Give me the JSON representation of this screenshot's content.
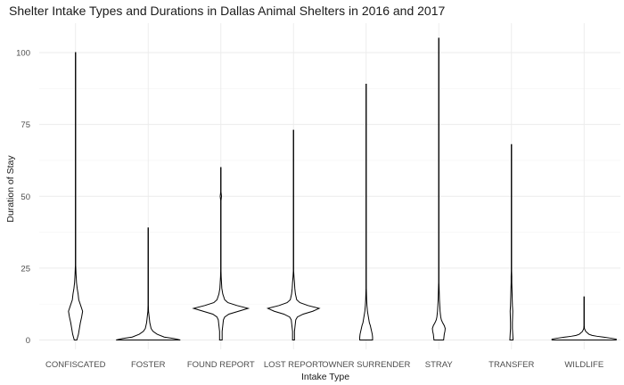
{
  "chart_data": {
    "type": "violin",
    "title": "Shelter Intake Types and Durations in Dallas Animal Shelters in 2016 and 2017",
    "xlabel": "Intake Type",
    "ylabel": "Duration of Stay",
    "ylim": [
      -4,
      110
    ],
    "yticks": [
      0,
      25,
      50,
      75,
      100
    ],
    "grid": true,
    "colors": {
      "outline": "#000000",
      "fill": "#ffffff",
      "grid": "#ebebeb"
    },
    "categories": [
      "CONFISCATED",
      "FOSTER",
      "FOUND REPORT",
      "LOST REPORT",
      "OWNER SURRENDER",
      "STRAY",
      "TRANSFER",
      "WILDLIFE"
    ],
    "series": [
      {
        "category": "CONFISCATED",
        "min": 0,
        "max": 100,
        "density": [
          [
            0,
            0.04
          ],
          [
            2,
            0.09
          ],
          [
            4,
            0.12
          ],
          [
            6,
            0.15
          ],
          [
            8,
            0.19
          ],
          [
            10,
            0.22
          ],
          [
            12,
            0.16
          ],
          [
            14,
            0.1
          ],
          [
            16,
            0.08
          ],
          [
            18,
            0.05
          ],
          [
            20,
            0.03
          ],
          [
            23,
            0.015
          ],
          [
            26,
            0.005
          ],
          [
            100,
            0.005
          ]
        ]
      },
      {
        "category": "FOSTER",
        "min": 0,
        "max": 39,
        "density": [
          [
            0,
            1.0
          ],
          [
            0.5,
            0.8
          ],
          [
            1,
            0.5
          ],
          [
            2,
            0.28
          ],
          [
            3,
            0.15
          ],
          [
            4,
            0.09
          ],
          [
            6,
            0.05
          ],
          [
            8,
            0.03
          ],
          [
            10,
            0.01
          ],
          [
            12,
            0.005
          ],
          [
            39,
            0.005
          ]
        ]
      },
      {
        "category": "FOUND REPORT",
        "min": 0,
        "max": 60,
        "density": [
          [
            0,
            0.04
          ],
          [
            3,
            0.04
          ],
          [
            5,
            0.06
          ],
          [
            7,
            0.08
          ],
          [
            8,
            0.12
          ],
          [
            9,
            0.25
          ],
          [
            10,
            0.55
          ],
          [
            11,
            0.85
          ],
          [
            12,
            0.5
          ],
          [
            13,
            0.22
          ],
          [
            14,
            0.12
          ],
          [
            16,
            0.06
          ],
          [
            18,
            0.03
          ],
          [
            20,
            0.02
          ],
          [
            22,
            0.01
          ],
          [
            24,
            0.005
          ],
          [
            48.5,
            0.005
          ],
          [
            50,
            0.02
          ],
          [
            51.5,
            0.005
          ],
          [
            60,
            0.005
          ]
        ]
      },
      {
        "category": "LOST REPORT",
        "min": 0,
        "max": 73,
        "density": [
          [
            0,
            0.03
          ],
          [
            3,
            0.03
          ],
          [
            5,
            0.05
          ],
          [
            7,
            0.07
          ],
          [
            8,
            0.12
          ],
          [
            9,
            0.3
          ],
          [
            10,
            0.6
          ],
          [
            11,
            0.8
          ],
          [
            12,
            0.45
          ],
          [
            13,
            0.2
          ],
          [
            14,
            0.1
          ],
          [
            16,
            0.06
          ],
          [
            18,
            0.04
          ],
          [
            20,
            0.03
          ],
          [
            22,
            0.015
          ],
          [
            24,
            0.005
          ],
          [
            73,
            0.005
          ]
        ]
      },
      {
        "category": "OWNER SURRENDER",
        "min": 0,
        "max": 89,
        "density": [
          [
            0,
            0.2
          ],
          [
            1,
            0.2
          ],
          [
            2,
            0.19
          ],
          [
            3,
            0.17
          ],
          [
            4,
            0.15
          ],
          [
            5,
            0.13
          ],
          [
            6,
            0.1
          ],
          [
            8,
            0.07
          ],
          [
            10,
            0.04
          ],
          [
            12,
            0.025
          ],
          [
            14,
            0.015
          ],
          [
            16,
            0.01
          ],
          [
            18,
            0.005
          ],
          [
            89,
            0.005
          ]
        ]
      },
      {
        "category": "STRAY",
        "min": 0,
        "max": 105,
        "density": [
          [
            0,
            0.15
          ],
          [
            1,
            0.16
          ],
          [
            2,
            0.17
          ],
          [
            3,
            0.19
          ],
          [
            4,
            0.2
          ],
          [
            5,
            0.17
          ],
          [
            6,
            0.12
          ],
          [
            7,
            0.08
          ],
          [
            8,
            0.06
          ],
          [
            10,
            0.04
          ],
          [
            12,
            0.03
          ],
          [
            14,
            0.02
          ],
          [
            16,
            0.015
          ],
          [
            18,
            0.01
          ],
          [
            20,
            0.005
          ],
          [
            105,
            0.005
          ]
        ]
      },
      {
        "category": "TRANSFER",
        "min": 0,
        "max": 68,
        "density": [
          [
            0,
            0.05
          ],
          [
            2,
            0.04
          ],
          [
            4,
            0.03
          ],
          [
            6,
            0.03
          ],
          [
            8,
            0.035
          ],
          [
            10,
            0.04
          ],
          [
            12,
            0.03
          ],
          [
            14,
            0.025
          ],
          [
            16,
            0.02
          ],
          [
            18,
            0.015
          ],
          [
            20,
            0.01
          ],
          [
            22,
            0.01
          ],
          [
            24,
            0.005
          ],
          [
            68,
            0.005
          ]
        ]
      },
      {
        "category": "WILDLIFE",
        "min": 0,
        "max": 15,
        "density": [
          [
            0,
            1.0
          ],
          [
            0.3,
            1.0
          ],
          [
            0.6,
            0.85
          ],
          [
            1,
            0.6
          ],
          [
            1.3,
            0.4
          ],
          [
            1.6,
            0.25
          ],
          [
            2,
            0.15
          ],
          [
            3,
            0.05
          ],
          [
            4,
            0.01
          ],
          [
            5,
            0.005
          ],
          [
            15,
            0.005
          ]
        ]
      }
    ]
  }
}
